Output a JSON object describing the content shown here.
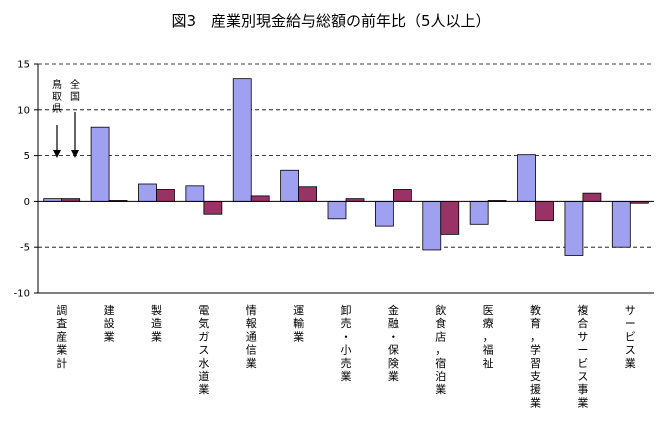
{
  "chart_data": {
    "type": "bar",
    "title": "図3　産業別現金給与総額の前年比（5人以上）",
    "categories": [
      "調査産業計",
      "建設業",
      "製造業",
      "電気ガス水道業",
      "情報通信業",
      "運輸業",
      "卸売・小売業",
      "金融・保険業",
      "飲食店，宿泊業",
      "医療，福祉",
      "教育，学習支援業",
      "複合サービス事業",
      "サービス業"
    ],
    "series": [
      {
        "name": "鳥取県",
        "color": "#a0a0f0",
        "values": [
          0.3,
          8.1,
          1.9,
          1.7,
          13.4,
          3.4,
          -1.9,
          -2.7,
          -5.3,
          -2.5,
          5.1,
          -5.9,
          -5.0
        ]
      },
      {
        "name": "全国",
        "color": "#993366",
        "values": [
          0.3,
          0.1,
          1.3,
          -1.4,
          0.6,
          1.6,
          0.3,
          1.3,
          -3.6,
          0.1,
          -2.1,
          0.9,
          -0.2
        ]
      }
    ],
    "ylim": [
      -10,
      15
    ],
    "yticks": [
      "15",
      "10",
      "5",
      "0",
      "-5",
      "-10"
    ],
    "grid": "dashed horizontal",
    "legend": "arrows top-left"
  }
}
